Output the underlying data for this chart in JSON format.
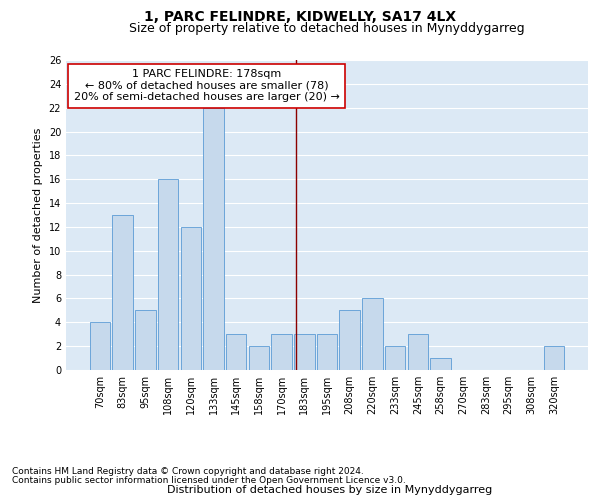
{
  "title": "1, PARC FELINDRE, KIDWELLY, SA17 4LX",
  "subtitle": "Size of property relative to detached houses in Mynyddygarreg",
  "xlabel": "Distribution of detached houses by size in Mynyddygarreg",
  "ylabel": "Number of detached properties",
  "bin_labels": [
    "70sqm",
    "83sqm",
    "95sqm",
    "108sqm",
    "120sqm",
    "133sqm",
    "145sqm",
    "158sqm",
    "170sqm",
    "183sqm",
    "195sqm",
    "208sqm",
    "220sqm",
    "233sqm",
    "245sqm",
    "258sqm",
    "270sqm",
    "283sqm",
    "295sqm",
    "308sqm",
    "320sqm"
  ],
  "bar_values": [
    4,
    13,
    5,
    16,
    12,
    22,
    3,
    2,
    3,
    3,
    3,
    5,
    6,
    2,
    3,
    1,
    0,
    0,
    0,
    0,
    2
  ],
  "bar_color": "#c6d9ec",
  "bar_edge_color": "#5b9bd5",
  "vline_x_index": 8.65,
  "vline_color": "#8b0000",
  "annotation_line1": "1 PARC FELINDRE: 178sqm",
  "annotation_line2": "← 80% of detached houses are smaller (78)",
  "annotation_line3": "20% of semi-detached houses are larger (20) →",
  "annotation_box_facecolor": "#ffffff",
  "annotation_box_edgecolor": "#cc0000",
  "ylim": [
    0,
    26
  ],
  "yticks": [
    0,
    2,
    4,
    6,
    8,
    10,
    12,
    14,
    16,
    18,
    20,
    22,
    24,
    26
  ],
  "grid_color": "#ffffff",
  "bg_color": "#dce9f5",
  "footer_line1": "Contains HM Land Registry data © Crown copyright and database right 2024.",
  "footer_line2": "Contains public sector information licensed under the Open Government Licence v3.0.",
  "title_fontsize": 10,
  "subtitle_fontsize": 9,
  "ylabel_fontsize": 8,
  "xlabel_fontsize": 8,
  "tick_fontsize": 7,
  "annotation_fontsize": 8,
  "footer_fontsize": 6.5
}
